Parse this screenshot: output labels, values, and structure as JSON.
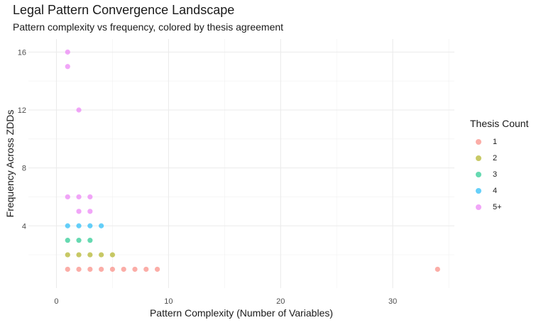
{
  "chart_data": {
    "type": "scatter",
    "title": "Legal Pattern Convergence Landscape",
    "subtitle": "Pattern complexity vs frequency, colored by thesis agreement",
    "xlabel": "Pattern Complexity (Number of Variables)",
    "ylabel": "Frequency Across ZDDs",
    "xlim": [
      -2.5,
      35.5
    ],
    "ylim": [
      -0.3,
      16.9
    ],
    "xticks": [
      0,
      10,
      20,
      30
    ],
    "yticks": [
      4,
      8,
      12,
      16
    ],
    "grid": true,
    "legend_title": "Thesis Count",
    "legend_position": "right",
    "series": [
      {
        "name": "1",
        "color": "#F8766D",
        "points": [
          [
            1,
            1
          ],
          [
            2,
            1
          ],
          [
            3,
            1
          ],
          [
            4,
            1
          ],
          [
            5,
            1
          ],
          [
            6,
            1
          ],
          [
            7,
            1
          ],
          [
            8,
            1
          ],
          [
            9,
            1
          ],
          [
            34,
            1
          ]
        ]
      },
      {
        "name": "2",
        "color": "#A3A500",
        "points": [
          [
            1,
            2
          ],
          [
            2,
            2
          ],
          [
            3,
            2
          ],
          [
            4,
            2
          ],
          [
            5,
            2
          ]
        ]
      },
      {
        "name": "3",
        "color": "#00BF7D",
        "points": [
          [
            1,
            3
          ],
          [
            2,
            3
          ],
          [
            3,
            3
          ]
        ]
      },
      {
        "name": "4",
        "color": "#00B0F6",
        "points": [
          [
            1,
            4
          ],
          [
            2,
            4
          ],
          [
            3,
            4
          ],
          [
            4,
            4
          ]
        ]
      },
      {
        "name": "5+",
        "color": "#E76BF3",
        "points": [
          [
            1,
            6
          ],
          [
            2,
            6
          ],
          [
            3,
            6
          ],
          [
            2,
            5
          ],
          [
            3,
            5
          ],
          [
            1,
            15
          ],
          [
            1,
            16
          ],
          [
            2,
            12
          ]
        ]
      }
    ]
  }
}
